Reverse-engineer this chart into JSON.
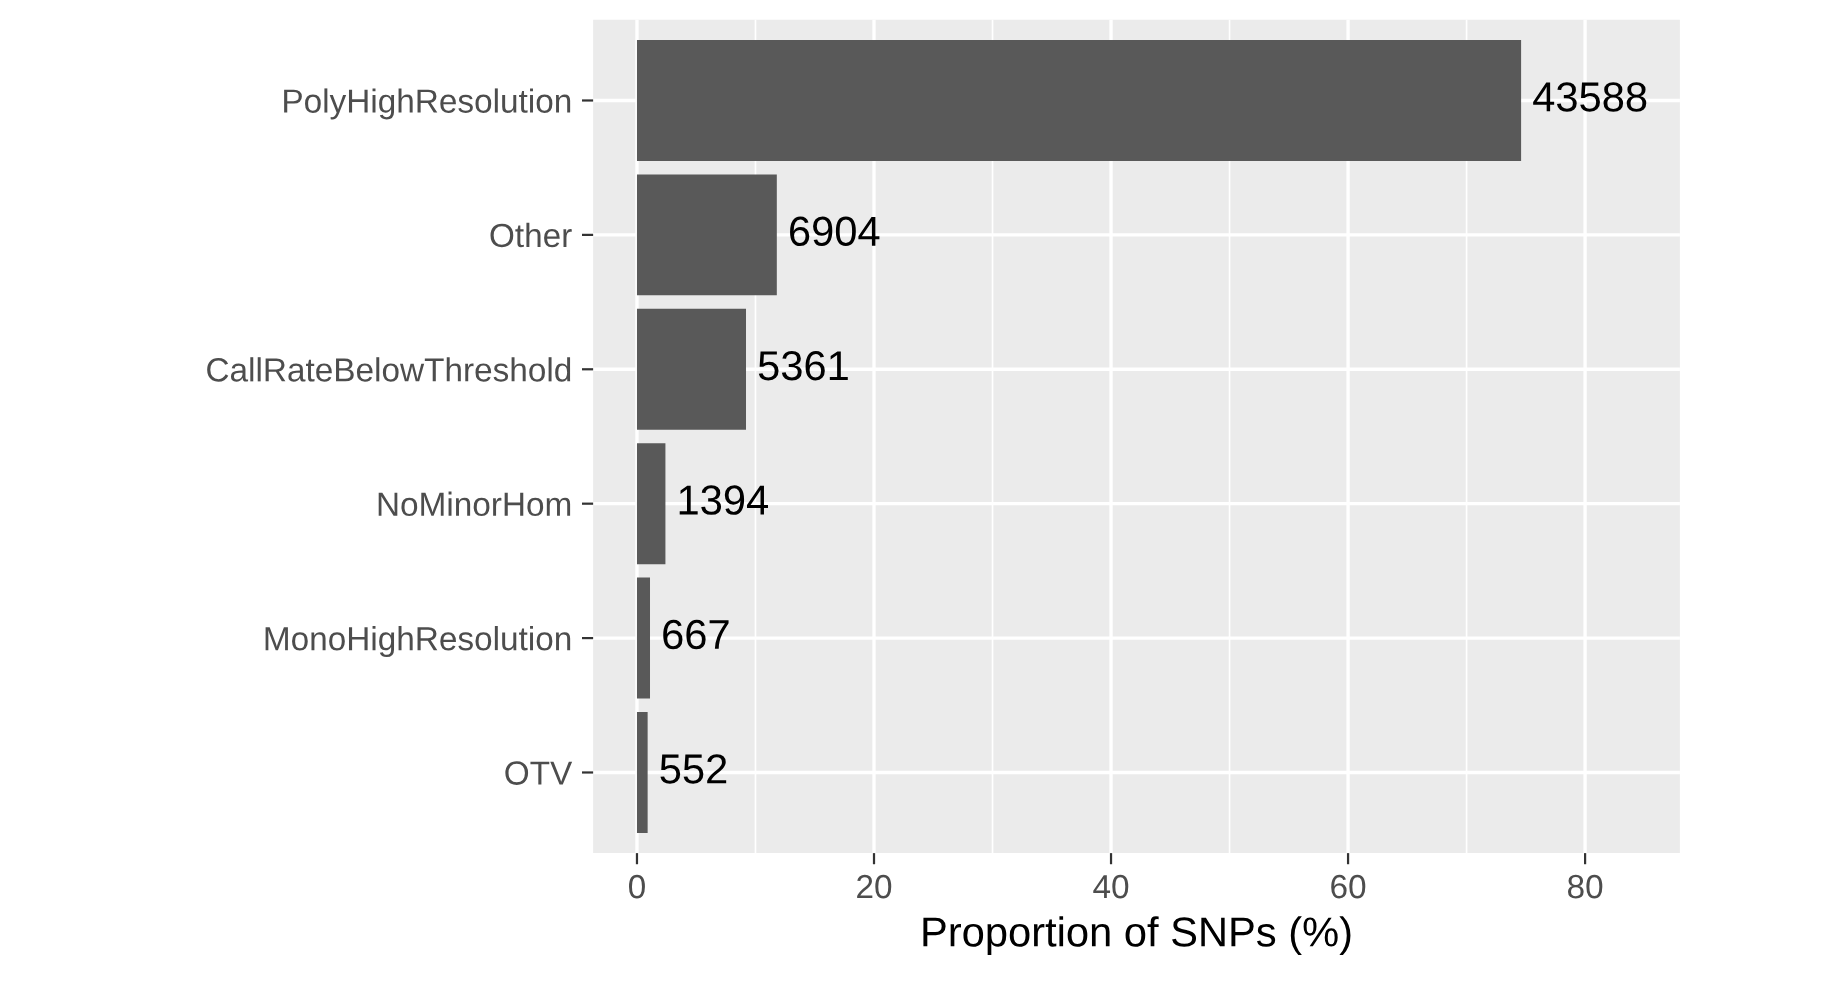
{
  "chart_data": {
    "type": "bar",
    "orientation": "horizontal",
    "xlabel": "Proportion of SNPs (%)",
    "categories": [
      "PolyHighResolution",
      "Other",
      "CallRateBelowThreshold",
      "NoMinorHom",
      "MonoHighResolution",
      "OTV"
    ],
    "values": [
      74.6,
      11.8,
      9.2,
      2.4,
      1.1,
      0.9
    ],
    "annotations": [
      {
        "text": "43588",
        "x": 74.6,
        "y": "PolyHighResolution"
      },
      {
        "text": "6904",
        "x": 11.8,
        "y": "Other"
      },
      {
        "text": "5361",
        "x": 9.2,
        "y": "CallRateBelowThreshold"
      },
      {
        "text": "1394",
        "x": 2.4,
        "y": "NoMinorHom"
      },
      {
        "text": "667",
        "x": 1.1,
        "y": "MonoHighResolution"
      },
      {
        "text": "552",
        "x": 0.9,
        "y": "OTV"
      }
    ],
    "color": "#595959",
    "xlim": [
      -3.7,
      88
    ],
    "xticks": [
      0,
      20,
      40,
      60,
      80
    ],
    "grid": true
  }
}
